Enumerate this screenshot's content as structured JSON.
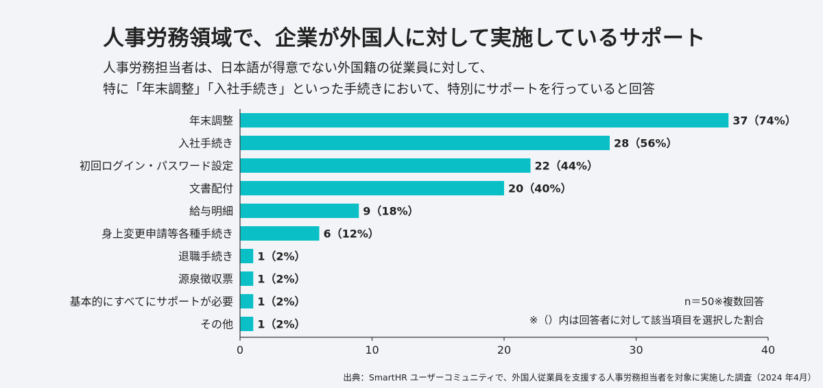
{
  "title": "人事労務領域で、企業が外国人に対して実施しているサポート",
  "subtitle_line1": "人事労務担当者は、日本語が得意でない外国籍の従業員に対して、",
  "subtitle_line2": "特に「年末調整」「入社手続き」といった手続きにおいて、特別にサポートを行っていると回答",
  "colors": {
    "bar": "#0ac0c6",
    "background": "#f3f4f8",
    "text": "#222222"
  },
  "chart_data": {
    "type": "bar",
    "orientation": "horizontal",
    "categories": [
      "年末調整",
      "入社手続き",
      "初回ログイン・パスワード設定",
      "文書配付",
      "給与明細",
      "身上変更申請等各種手続き",
      "退職手続き",
      "源泉徴収票",
      "基本的にすべてにサポートが必要",
      "その他"
    ],
    "values": [
      37,
      28,
      22,
      20,
      9,
      6,
      1,
      1,
      1,
      1
    ],
    "value_labels": [
      "37（74%）",
      "28（56%）",
      "22（44%）",
      "20（40%）",
      "9（18%）",
      "6（12%）",
      "1（2%）",
      "1（2%）",
      "1（2%）",
      "1（2%）"
    ],
    "xlim": [
      0,
      40
    ],
    "xticks": [
      0,
      10,
      20,
      30,
      40
    ],
    "xlabel": "",
    "ylabel": "",
    "grid": false
  },
  "notes": {
    "sample": "n＝50※複数回答",
    "parenthesis": "※（）内は回答者に対して該当項目を選択した割合"
  },
  "source": "出典：SmartHR ユーザーコミュニティで、外国人従業員を支援する人事労務担当者を対象に実施した調査（2024 年4月）"
}
